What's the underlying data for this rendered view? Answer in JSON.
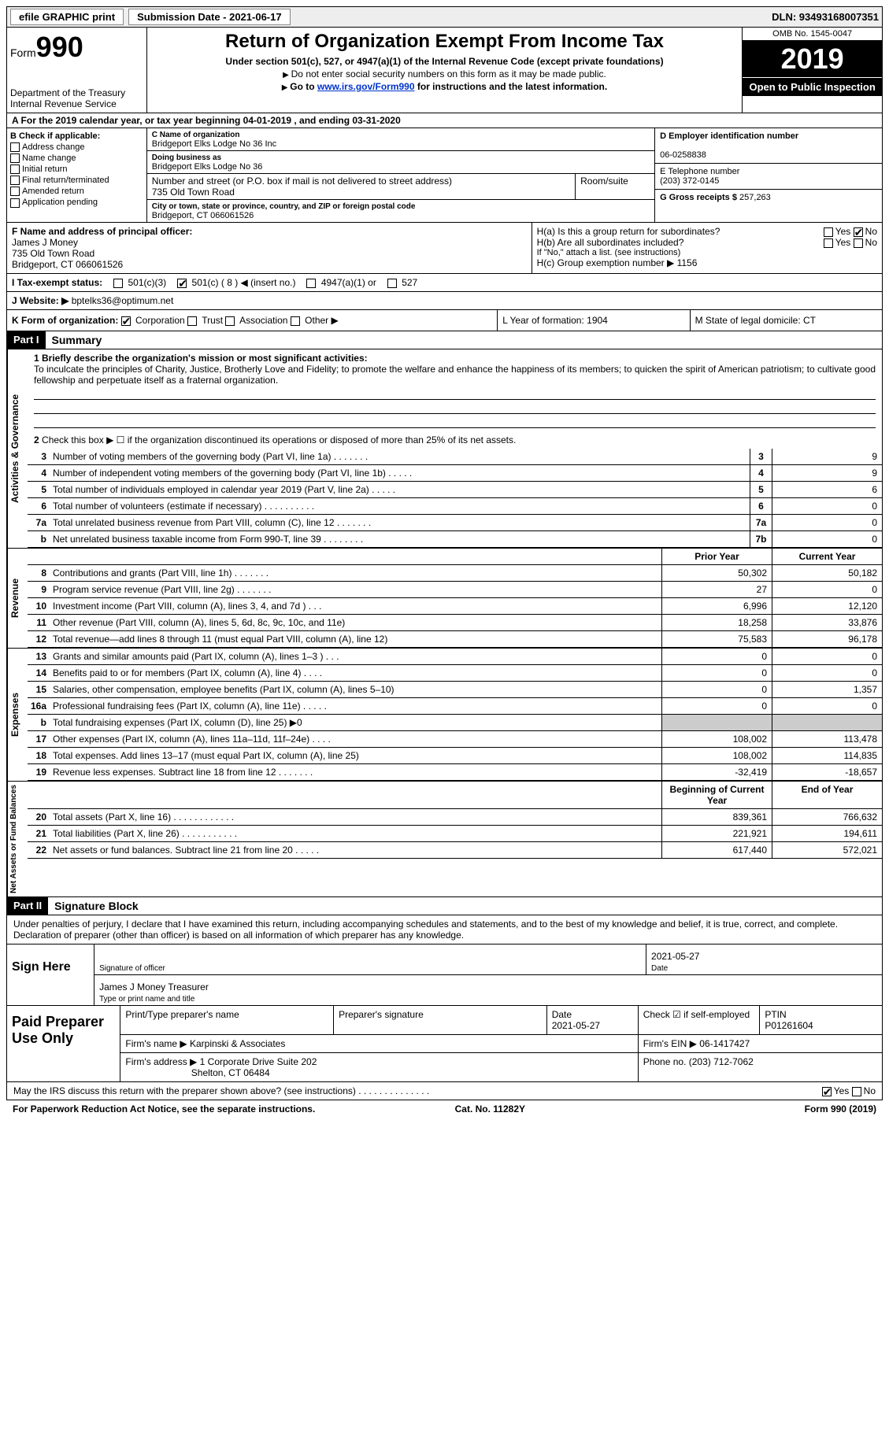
{
  "topbar": {
    "efile": "efile GRAPHIC print",
    "submission": "Submission Date - 2021-06-17",
    "dln": "DLN: 93493168007351"
  },
  "header": {
    "form_label": "Form",
    "form_num": "990",
    "dept": "Department of the Treasury\nInternal Revenue Service",
    "title": "Return of Organization Exempt From Income Tax",
    "subtitle": "Under section 501(c), 527, or 4947(a)(1) of the Internal Revenue Code (except private foundations)",
    "note1": "Do not enter social security numbers on this form as it may be made public.",
    "note2_pre": "Go to ",
    "note2_link": "www.irs.gov/Form990",
    "note2_post": " for instructions and the latest information.",
    "omb": "OMB No. 1545-0047",
    "year": "2019",
    "open": "Open to Public Inspection"
  },
  "period": "A For the 2019 calendar year, or tax year beginning 04-01-2019    , and ending 03-31-2020",
  "colB": {
    "title": "B Check if applicable:",
    "opts": [
      "Address change",
      "Name change",
      "Initial return",
      "Final return/terminated",
      "Amended return",
      "Application pending"
    ]
  },
  "colC": {
    "name_label": "C Name of organization",
    "name": "Bridgeport Elks Lodge No 36 Inc",
    "dba_label": "Doing business as",
    "dba": "Bridgeport Elks Lodge No 36",
    "street_label": "Number and street (or P.O. box if mail is not delivered to street address)",
    "street": "735 Old Town Road",
    "room_label": "Room/suite",
    "city_label": "City or town, state or province, country, and ZIP or foreign postal code",
    "city": "Bridgeport, CT  066061526"
  },
  "colD": {
    "ein_label": "D Employer identification number",
    "ein": "06-0258838",
    "tel_label": "E Telephone number",
    "tel": "(203) 372-0145",
    "gross_label": "G Gross receipts $",
    "gross": "257,263"
  },
  "rowF": {
    "label": "F Name and address of principal officer:",
    "name": "James J Money",
    "addr1": "735 Old Town Road",
    "addr2": "Bridgeport, CT  066061526"
  },
  "rowH": {
    "ha": "H(a)  Is this a group return for subordinates?",
    "hb": "H(b)  Are all subordinates included?",
    "hb_note": "If \"No,\" attach a list. (see instructions)",
    "hc": "H(c)  Group exemption number ▶   1156"
  },
  "status": {
    "label": "I    Tax-exempt status:",
    "o1": "501(c)(3)",
    "o2": "501(c) ( 8 ) ◀ (insert no.)",
    "o3": "4947(a)(1) or",
    "o4": "527"
  },
  "website": {
    "label": "J   Website: ▶",
    "val": "bptelks36@optimum.net"
  },
  "korg": {
    "k": "K Form of organization:",
    "k_opts": [
      "Corporation",
      "Trust",
      "Association",
      "Other ▶"
    ],
    "l": "L Year of formation: 1904",
    "m": "M State of legal domicile: CT"
  },
  "part1": {
    "hdr": "Part I",
    "title": "Summary",
    "q1": "1  Briefly describe the organization's mission or most significant activities:",
    "mission": "To inculcate the principles of Charity, Justice, Brotherly Love and Fidelity; to promote the welfare and enhance the happiness of its members; to quicken the spirit of American patriotism; to cultivate good fellowship and perpetuate itself as a fraternal organization.",
    "q2": "Check this box ▶ ☐  if the organization discontinued its operations or disposed of more than 25% of its net assets."
  },
  "sides": {
    "gov": "Activities & Governance",
    "rev": "Revenue",
    "exp": "Expenses",
    "net": "Net Assets or Fund Balances"
  },
  "gov_rows": [
    {
      "n": "3",
      "d": "Number of voting members of the governing body (Part VI, line 1a)   .    .    .    .    .    .    .",
      "b": "3",
      "v": "9"
    },
    {
      "n": "4",
      "d": "Number of independent voting members of the governing body (Part VI, line 1b)   .    .    .    .    .",
      "b": "4",
      "v": "9"
    },
    {
      "n": "5",
      "d": "Total number of individuals employed in calendar year 2019 (Part V, line 2a)   .    .    .    .    .",
      "b": "5",
      "v": "6"
    },
    {
      "n": "6",
      "d": "Total number of volunteers (estimate if necessary)   .    .    .    .    .    .    .    .    .    .",
      "b": "6",
      "v": "0"
    },
    {
      "n": "7a",
      "d": "Total unrelated business revenue from Part VIII, column (C), line 12   .    .    .    .    .    .    .",
      "b": "7a",
      "v": "0"
    },
    {
      "n": "b",
      "d": "Net unrelated business taxable income from Form 990-T, line 39   .    .    .    .    .    .    .    .",
      "b": "7b",
      "v": "0"
    }
  ],
  "col_hdrs": {
    "py": "Prior Year",
    "cy": "Current Year"
  },
  "rev_rows": [
    {
      "n": "8",
      "d": "Contributions and grants (Part VIII, line 1h)   .    .    .    .    .    .    .",
      "py": "50,302",
      "cy": "50,182"
    },
    {
      "n": "9",
      "d": "Program service revenue (Part VIII, line 2g)   .    .    .    .    .    .    .",
      "py": "27",
      "cy": "0"
    },
    {
      "n": "10",
      "d": "Investment income (Part VIII, column (A), lines 3, 4, and 7d )   .    .    .",
      "py": "6,996",
      "cy": "12,120"
    },
    {
      "n": "11",
      "d": "Other revenue (Part VIII, column (A), lines 5, 6d, 8c, 9c, 10c, and 11e)",
      "py": "18,258",
      "cy": "33,876"
    },
    {
      "n": "12",
      "d": "Total revenue—add lines 8 through 11 (must equal Part VIII, column (A), line 12)",
      "py": "75,583",
      "cy": "96,178"
    }
  ],
  "exp_rows": [
    {
      "n": "13",
      "d": "Grants and similar amounts paid (Part IX, column (A), lines 1–3 )   .    .    .",
      "py": "0",
      "cy": "0"
    },
    {
      "n": "14",
      "d": "Benefits paid to or for members (Part IX, column (A), line 4)   .    .    .    .",
      "py": "0",
      "cy": "0"
    },
    {
      "n": "15",
      "d": "Salaries, other compensation, employee benefits (Part IX, column (A), lines 5–10)",
      "py": "0",
      "cy": "1,357"
    },
    {
      "n": "16a",
      "d": "Professional fundraising fees (Part IX, column (A), line 11e)   .    .    .    .    .",
      "py": "0",
      "cy": "0"
    },
    {
      "n": "b",
      "d": "Total fundraising expenses (Part IX, column (D), line 25) ▶0",
      "py": "",
      "cy": "",
      "shade": true
    },
    {
      "n": "17",
      "d": "Other expenses (Part IX, column (A), lines 11a–11d, 11f–24e)   .    .    .    .",
      "py": "108,002",
      "cy": "113,478"
    },
    {
      "n": "18",
      "d": "Total expenses. Add lines 13–17 (must equal Part IX, column (A), line 25)",
      "py": "108,002",
      "cy": "114,835"
    },
    {
      "n": "19",
      "d": "Revenue less expenses. Subtract line 18 from line 12   .    .    .    .    .    .    .",
      "py": "-32,419",
      "cy": "-18,657"
    }
  ],
  "net_hdrs": {
    "by": "Beginning of Current Year",
    "ey": "End of Year"
  },
  "net_rows": [
    {
      "n": "20",
      "d": "Total assets (Part X, line 16)   .    .    .    .    .    .    .    .    .    .    .    .",
      "py": "839,361",
      "cy": "766,632"
    },
    {
      "n": "21",
      "d": "Total liabilities (Part X, line 26)   .    .    .    .    .    .    .    .    .    .    .",
      "py": "221,921",
      "cy": "194,611"
    },
    {
      "n": "22",
      "d": "Net assets or fund balances. Subtract line 21 from line 20   .    .    .    .    .",
      "py": "617,440",
      "cy": "572,021"
    }
  ],
  "part2": {
    "hdr": "Part II",
    "title": "Signature Block"
  },
  "decl": "Under penalties of perjury, I declare that I have examined this return, including accompanying schedules and statements, and to the best of my knowledge and belief, it is true, correct, and complete. Declaration of preparer (other than officer) is based on all information of which preparer has any knowledge.",
  "sign": {
    "label": "Sign Here",
    "sig": "Signature of officer",
    "date": "2021-05-27",
    "date_lbl": "Date",
    "name": "James J Money Treasurer",
    "name_lbl": "Type or print name and title"
  },
  "prep": {
    "label": "Paid Preparer Use Only",
    "h1": "Print/Type preparer's name",
    "h2": "Preparer's signature",
    "h3": "Date",
    "h3v": "2021-05-27",
    "h4": "Check ☑ if self-employed",
    "h5": "PTIN",
    "h5v": "P01261604",
    "firm_lbl": "Firm's name    ▶",
    "firm": "Karpinski & Associates",
    "ein_lbl": "Firm's EIN ▶",
    "ein": "06-1417427",
    "addr_lbl": "Firm's address ▶",
    "addr1": "1 Corporate Drive Suite 202",
    "addr2": "Shelton, CT  06484",
    "phone_lbl": "Phone no.",
    "phone": "(203) 712-7062"
  },
  "discuss": "May the IRS discuss this return with the preparer shown above? (see instructions)   .    .    .    .    .    .    .    .    .    .    .    .    .    .",
  "footer": {
    "pra": "For Paperwork Reduction Act Notice, see the separate instructions.",
    "cat": "Cat. No. 11282Y",
    "form": "Form 990 (2019)"
  }
}
